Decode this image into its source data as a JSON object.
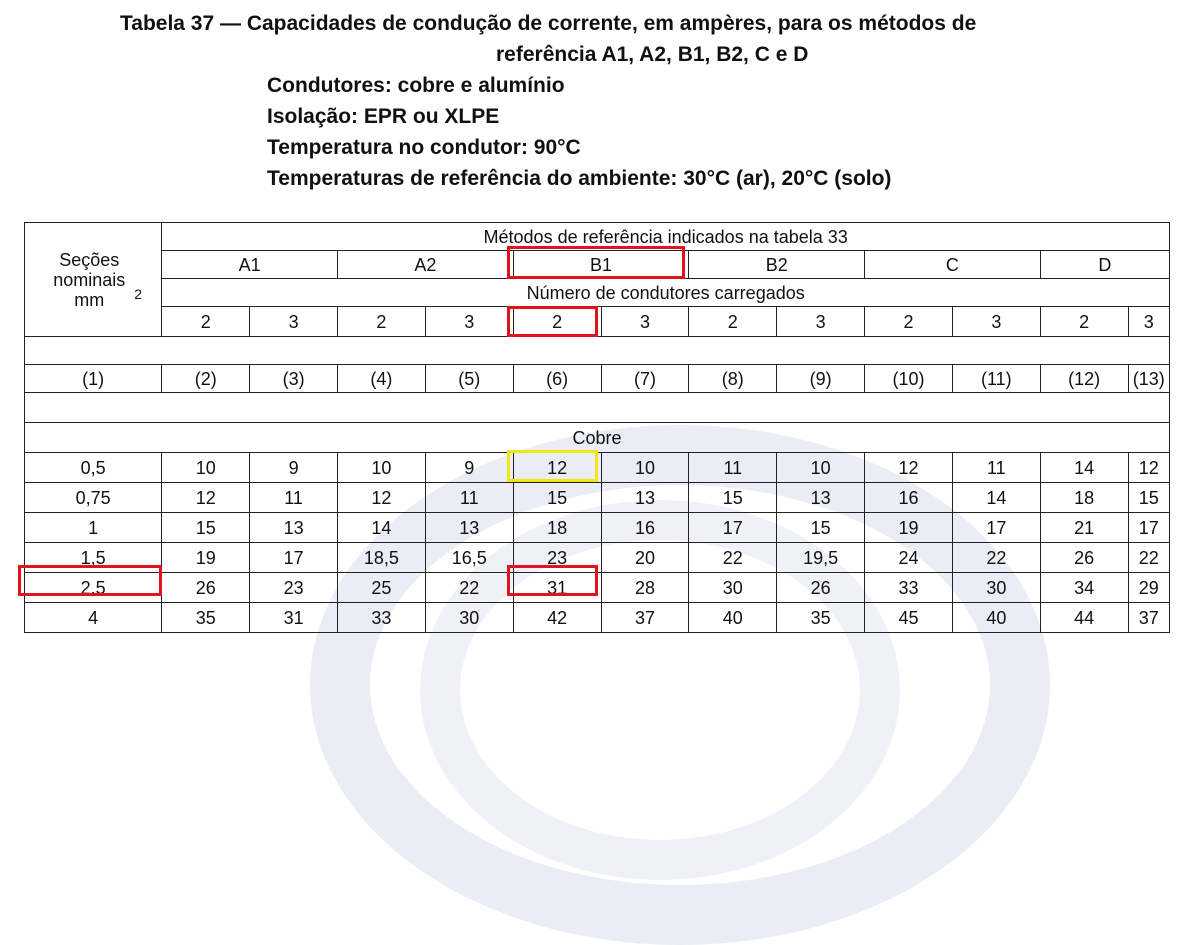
{
  "caption": {
    "line1": "Tabela 37 — Capacidades de condução de corrente, em ampères, para os métodos de",
    "line2": "referência A1, A2, B1, B2, C e D",
    "line3": "Condutores: cobre e alumínio",
    "line4": "Isolação: EPR ou XLPE",
    "line5": "Temperatura no condutor: 90°C",
    "line6": "Temperaturas de referência do ambiente: 30°C (ar), 20°C (solo)"
  },
  "table": {
    "secoes_header": "Seções nominais mm",
    "secoes_sup": "2",
    "metodos_header": "Métodos de referência indicados na tabela 33",
    "methods": [
      "A1",
      "A2",
      "B1",
      "B2",
      "C",
      "D"
    ],
    "condutores_header": "Número de condutores carregados",
    "conductor_counts": [
      "2",
      "3",
      "2",
      "3",
      "2",
      "3",
      "2",
      "3",
      "2",
      "3",
      "2",
      "3"
    ],
    "column_numbers": [
      "(1)",
      "(2)",
      "(3)",
      "(4)",
      "(5)",
      "(6)",
      "(7)",
      "(8)",
      "(9)",
      "(10)",
      "(11)",
      "(12)",
      "(13)"
    ],
    "section_title": "Cobre",
    "rows": [
      [
        "0,5",
        "10",
        "9",
        "10",
        "9",
        "12",
        "10",
        "11",
        "10",
        "12",
        "11",
        "14",
        "12"
      ],
      [
        "0,75",
        "12",
        "11",
        "12",
        "11",
        "15",
        "13",
        "15",
        "13",
        "16",
        "14",
        "18",
        "15"
      ],
      [
        "1",
        "15",
        "13",
        "14",
        "13",
        "18",
        "16",
        "17",
        "15",
        "19",
        "17",
        "21",
        "17"
      ],
      [
        "1,5",
        "19",
        "17",
        "18,5",
        "16,5",
        "23",
        "20",
        "22",
        "19,5",
        "24",
        "22",
        "26",
        "22"
      ],
      [
        "2,5",
        "26",
        "23",
        "25",
        "22",
        "31",
        "28",
        "30",
        "26",
        "33",
        "30",
        "34",
        "29"
      ],
      [
        "4",
        "35",
        "31",
        "33",
        "30",
        "42",
        "37",
        "40",
        "35",
        "45",
        "40",
        "44",
        "37"
      ]
    ]
  },
  "highlight_colors": {
    "red": "#e0141e",
    "yellow": "#f3e514"
  }
}
